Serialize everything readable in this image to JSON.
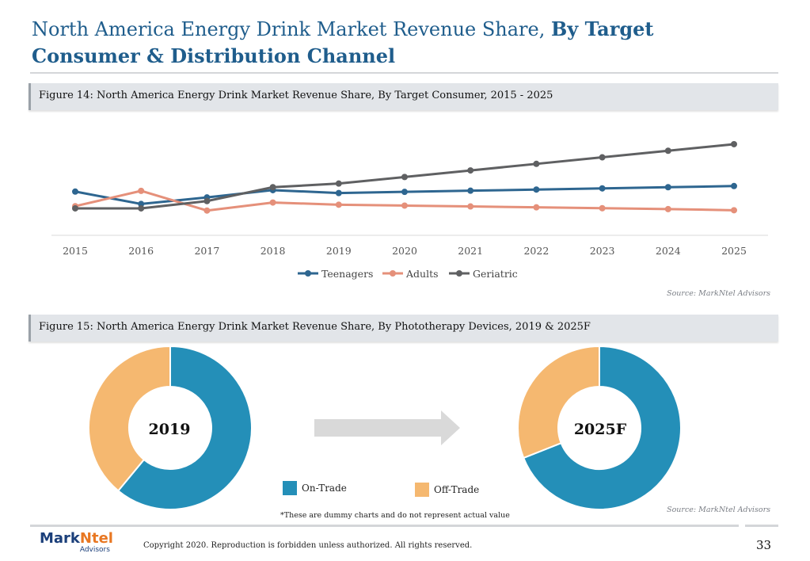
{
  "page": {
    "title_normal": "North America Energy Drink Market Revenue Share, ",
    "title_bold": "By Target Consumer & Distribution Channel",
    "source1": "Source: MarkNtel Advisors",
    "source2": "Source: MarkNtel Advisors",
    "footnote": "*These are dummy charts and do not represent actual value",
    "copyright": "Copyright 2020. Reproduction is forbidden unless authorized. All rights reserved.",
    "page_number": "33",
    "logo_part1": "Mark",
    "logo_part2": "Ntel",
    "logo_sub": "Advisors"
  },
  "colors": {
    "teenagers": "#2e6690",
    "adults": "#e5907a",
    "geriatric": "#5f6062",
    "on_trade": "#248fb8",
    "off_trade": "#f5b870",
    "accent": "#1f5d8c"
  },
  "chart_data": [
    {
      "type": "line",
      "title": "Figure 14: North America Energy Drink Market Revenue Share, By Target Consumer, 2015 - 2025",
      "x": [
        "2015",
        "2016",
        "2017",
        "2018",
        "2019",
        "2020",
        "2021",
        "2022",
        "2023",
        "2024",
        "2025"
      ],
      "series": [
        {
          "name": "Teenagers",
          "values": [
            21.0,
            12.5,
            17.0,
            22.0,
            20.0,
            20.8,
            21.6,
            22.4,
            23.2,
            24.0,
            24.8
          ]
        },
        {
          "name": "Adults",
          "values": [
            11.0,
            21.5,
            8.0,
            13.5,
            12.0,
            11.4,
            10.8,
            10.2,
            9.6,
            9.0,
            8.2
          ]
        },
        {
          "name": "Geriatric",
          "values": [
            9.5,
            9.5,
            14.5,
            24.0,
            26.5,
            31.0,
            35.5,
            40.0,
            44.5,
            49.0,
            53.5
          ]
        }
      ],
      "ylim": [
        -9,
        60
      ],
      "grid": false,
      "legend": "bottom"
    },
    {
      "type": "pie",
      "title": "Figure 15: North America Energy Drink Market Revenue Share, By Phototherapy Devices, 2019 & 2025F",
      "legend": "center",
      "labels": [
        "On-Trade",
        "Off-Trade"
      ],
      "charts": [
        {
          "center_label": "2019",
          "values": [
            61,
            39
          ]
        },
        {
          "center_label": "2025F",
          "values": [
            69,
            31
          ]
        }
      ]
    }
  ]
}
